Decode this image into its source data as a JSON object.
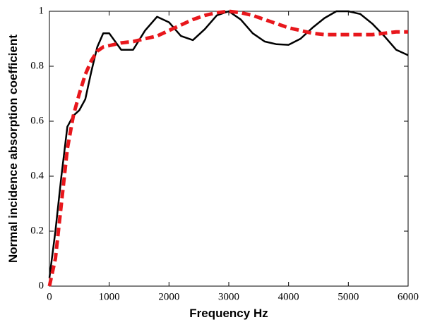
{
  "chart_data": {
    "type": "line",
    "xlabel": "Frequency Hz",
    "ylabel": "Normal incidence absorption coefficient",
    "x": [
      0,
      100,
      200,
      300,
      400,
      500,
      600,
      700,
      800,
      900,
      1000,
      1200,
      1400,
      1600,
      1800,
      2000,
      2200,
      2400,
      2600,
      2800,
      3000,
      3200,
      3400,
      3600,
      3800,
      4000,
      4200,
      4400,
      4600,
      4800,
      5000,
      5200,
      5400,
      5600,
      5800,
      6000
    ],
    "series": [
      {
        "color": "#000000",
        "dashed": false,
        "values": [
          0.03,
          0.2,
          0.4,
          0.58,
          0.62,
          0.64,
          0.68,
          0.78,
          0.87,
          0.92,
          0.92,
          0.86,
          0.86,
          0.93,
          0.98,
          0.96,
          0.91,
          0.895,
          0.935,
          0.985,
          1.0,
          0.97,
          0.92,
          0.89,
          0.88,
          0.878,
          0.9,
          0.94,
          0.975,
          1.0,
          1.0,
          0.99,
          0.955,
          0.91,
          0.86,
          0.84
        ]
      },
      {
        "color": "#e8171c",
        "dashed": true,
        "values": [
          0.0,
          0.1,
          0.3,
          0.5,
          0.62,
          0.7,
          0.77,
          0.82,
          0.855,
          0.87,
          0.875,
          0.885,
          0.89,
          0.9,
          0.91,
          0.93,
          0.95,
          0.97,
          0.985,
          0.995,
          1.0,
          0.995,
          0.985,
          0.97,
          0.955,
          0.94,
          0.93,
          0.92,
          0.915,
          0.915,
          0.915,
          0.915,
          0.915,
          0.92,
          0.925,
          0.925
        ]
      }
    ],
    "xlim": [
      0,
      6000
    ],
    "xticks": [
      0,
      1000,
      2000,
      3000,
      4000,
      5000,
      6000
    ],
    "ylim": [
      0,
      1
    ],
    "yticks": [
      0,
      0.2,
      0.4,
      0.6,
      0.8,
      1
    ]
  }
}
